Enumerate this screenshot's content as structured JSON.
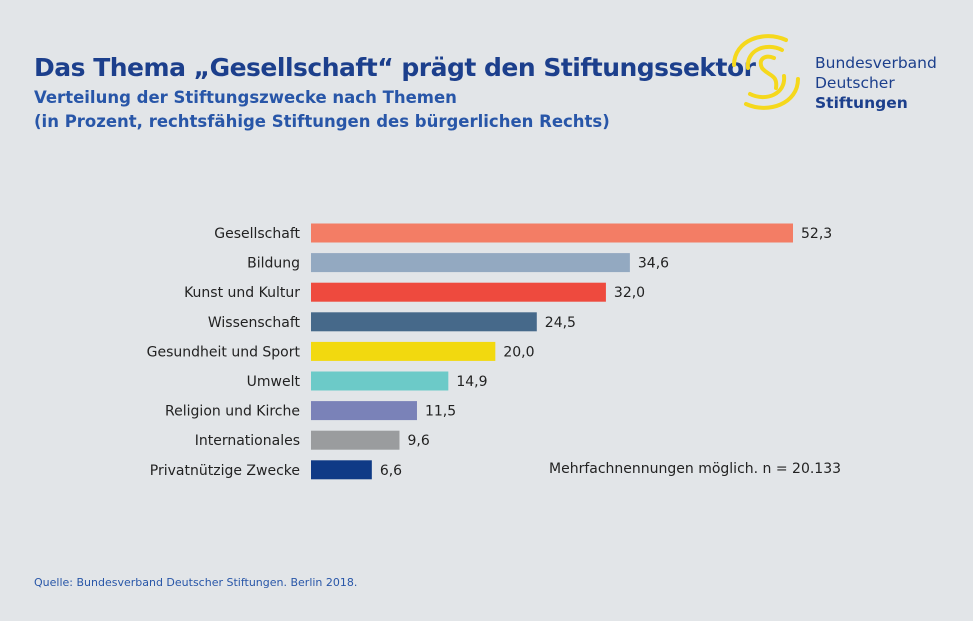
{
  "chart_data": {
    "type": "bar",
    "orientation": "horizontal",
    "title": "Das Thema „Gesellschaft“ prägt den Stiftungssektor",
    "subtitle": [
      "Verteilung der Stiftungszwecke nach Themen",
      "(in Prozent, rechtsfähige Stiftungen des bürgerlichen Rechts)"
    ],
    "categories": [
      "Gesellschaft",
      "Bildung",
      "Kunst und Kultur",
      "Wissenschaft",
      "Gesundheit und Sport",
      "Umwelt",
      "Religion und Kirche",
      "Internationales",
      "Privatnützige Zwecke"
    ],
    "values": [
      52.3,
      34.6,
      32.0,
      24.5,
      20.0,
      14.9,
      11.5,
      9.6,
      6.6
    ],
    "value_labels": [
      "52,3",
      "34,6",
      "32,0",
      "24,5",
      "20,0",
      "14,9",
      "11,5",
      "9,6",
      "6,6"
    ],
    "colors": [
      "#f37d65",
      "#93a9c1",
      "#ee4a3e",
      "#46698a",
      "#f2d90f",
      "#6ccac8",
      "#7a82b8",
      "#9a9c9e",
      "#0f3a86"
    ],
    "xlim": [
      0,
      52.3
    ],
    "grid": false,
    "legend": "none",
    "note": "Mehrfachnennungen möglich. n = 20.133"
  },
  "logo": {
    "line1": "Bundesverband",
    "line2": "Deutscher",
    "line3": "Stiftungen",
    "color": "#f5d81c"
  },
  "source": "Quelle: Bundesverband Deutscher Stiftungen. Berlin 2018."
}
